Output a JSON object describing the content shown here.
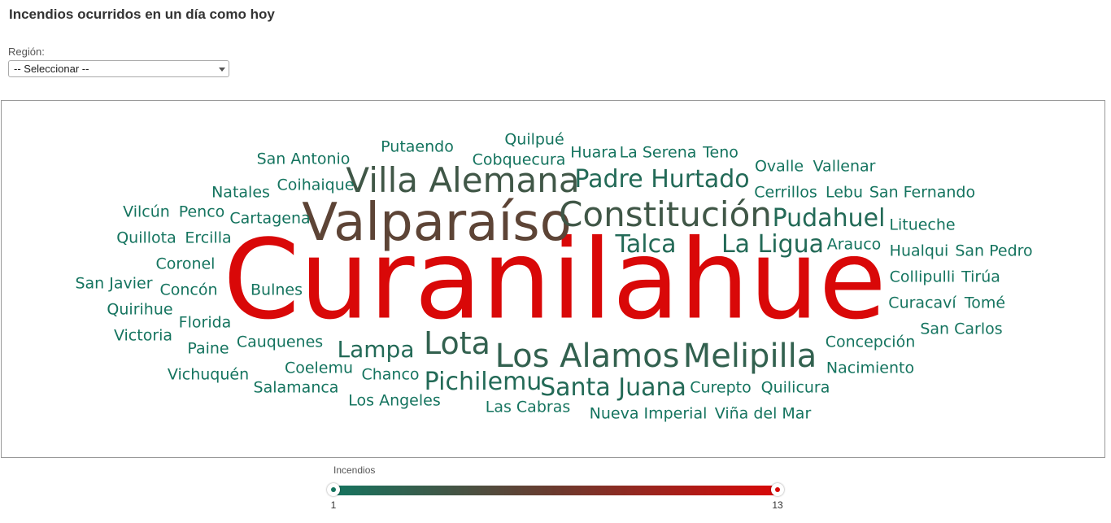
{
  "page": {
    "title": "Incendios ocurridos en un día como hoy"
  },
  "filter": {
    "label": "Región:",
    "selected": "-- Seleccionar --"
  },
  "legend": {
    "title": "Incendios",
    "min": 1,
    "max": 13,
    "min_label": "1",
    "max_label": "13",
    "color_low": "#15745f",
    "color_high": "#d90808"
  },
  "chart_data": {
    "type": "wordcloud",
    "metric": "Incendios",
    "words": [
      {
        "text": "Curanilahue",
        "value": 13
      },
      {
        "text": "Valparaíso",
        "value": 6
      },
      {
        "text": "Constitución",
        "value": 4
      },
      {
        "text": "Villa Alemana",
        "value": 4
      },
      {
        "text": "Los Alamos",
        "value": 3
      },
      {
        "text": "Melipilla",
        "value": 3
      },
      {
        "text": "Lota",
        "value": 3
      },
      {
        "text": "Padre Hurtado",
        "value": 2
      },
      {
        "text": "Pudahuel",
        "value": 2
      },
      {
        "text": "Santa Juana",
        "value": 2
      },
      {
        "text": "Pichilemu",
        "value": 2
      },
      {
        "text": "Talca",
        "value": 2
      },
      {
        "text": "La Ligua",
        "value": 2
      },
      {
        "text": "Lampa",
        "value": 2
      },
      {
        "text": "Quilpué",
        "value": 1
      },
      {
        "text": "Putaendo",
        "value": 1
      },
      {
        "text": "Cobquecura",
        "value": 1
      },
      {
        "text": "Huara",
        "value": 1
      },
      {
        "text": "La Serena",
        "value": 1
      },
      {
        "text": "Teno",
        "value": 1
      },
      {
        "text": "San Antonio",
        "value": 1
      },
      {
        "text": "Ovalle",
        "value": 1
      },
      {
        "text": "Vallenar",
        "value": 1
      },
      {
        "text": "Coihaique",
        "value": 1
      },
      {
        "text": "Natales",
        "value": 1
      },
      {
        "text": "Cerrillos",
        "value": 1
      },
      {
        "text": "Lebu",
        "value": 1
      },
      {
        "text": "San Fernando",
        "value": 1
      },
      {
        "text": "Vilcún",
        "value": 1
      },
      {
        "text": "Penco",
        "value": 1
      },
      {
        "text": "Cartagena",
        "value": 1
      },
      {
        "text": "Litueche",
        "value": 1
      },
      {
        "text": "Quillota",
        "value": 1
      },
      {
        "text": "Ercilla",
        "value": 1
      },
      {
        "text": "Arauco",
        "value": 1
      },
      {
        "text": "Hualqui",
        "value": 1
      },
      {
        "text": "San Pedro",
        "value": 1
      },
      {
        "text": "Coronel",
        "value": 1
      },
      {
        "text": "Collipulli",
        "value": 1
      },
      {
        "text": "Tirúa",
        "value": 1
      },
      {
        "text": "San Javier",
        "value": 1
      },
      {
        "text": "Concón",
        "value": 1
      },
      {
        "text": "Bulnes",
        "value": 1
      },
      {
        "text": "Quirihue",
        "value": 1
      },
      {
        "text": "Curacaví",
        "value": 1
      },
      {
        "text": "Tomé",
        "value": 1
      },
      {
        "text": "Florida",
        "value": 1
      },
      {
        "text": "Victoria",
        "value": 1
      },
      {
        "text": "San Carlos",
        "value": 1
      },
      {
        "text": "Paine",
        "value": 1
      },
      {
        "text": "Cauquenes",
        "value": 1
      },
      {
        "text": "Concepción",
        "value": 1
      },
      {
        "text": "Coelemu",
        "value": 1
      },
      {
        "text": "Chanco",
        "value": 1
      },
      {
        "text": "Vichuquén",
        "value": 1
      },
      {
        "text": "Nacimiento",
        "value": 1
      },
      {
        "text": "Salamanca",
        "value": 1
      },
      {
        "text": "Curepto",
        "value": 1
      },
      {
        "text": "Quilicura",
        "value": 1
      },
      {
        "text": "Los Angeles",
        "value": 1
      },
      {
        "text": "Las Cabras",
        "value": 1
      },
      {
        "text": "Nueva Imperial",
        "value": 1
      },
      {
        "text": "Viña del Mar",
        "value": 1
      }
    ]
  }
}
